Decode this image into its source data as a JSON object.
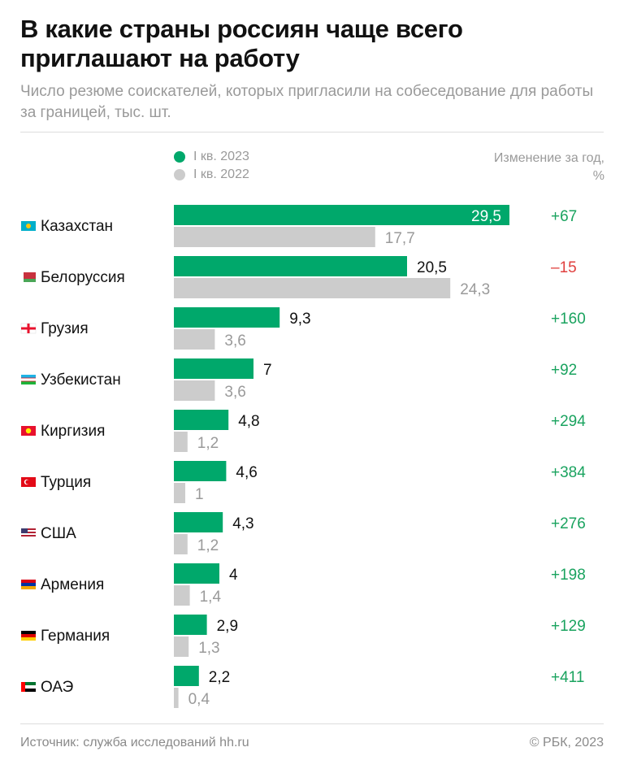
{
  "title": "В какие страны россиян чаще всего приглашают на работу",
  "subtitle": "Число резюме соискателей, которых пригласили на собеседование для работы за границей, тыс. шт.",
  "legend": {
    "current": "I кв. 2023",
    "previous": "I кв. 2022"
  },
  "change_header": "Изменение за год, %",
  "colors": {
    "current": "#00a86b",
    "previous": "#cccccc",
    "positive": "#1aa35f",
    "negative": "#e0403f",
    "label_current": "#111111",
    "label_previous": "#9a9a9a"
  },
  "chart_data": {
    "type": "bar",
    "orientation": "horizontal",
    "title": "В какие страны россиян чаще всего приглашают на работу",
    "categories": [
      "Казахстан",
      "Белоруссия",
      "Грузия",
      "Узбекистан",
      "Киргизия",
      "Турция",
      "США",
      "Армения",
      "Германия",
      "ОАЭ"
    ],
    "series": [
      {
        "name": "I кв. 2023",
        "values": [
          29.5,
          20.5,
          9.3,
          7,
          4.8,
          4.6,
          4.3,
          4,
          2.9,
          2.2
        ],
        "labels": [
          "29,5",
          "20,5",
          "9,3",
          "7",
          "4,8",
          "4,6",
          "4,3",
          "4",
          "2,9",
          "2,2"
        ]
      },
      {
        "name": "I кв. 2022",
        "values": [
          17.7,
          24.3,
          3.6,
          3.6,
          1.2,
          1,
          1.2,
          1.4,
          1.3,
          0.4
        ],
        "labels": [
          "17,7",
          "24,3",
          "3,6",
          "3,6",
          "1,2",
          "1",
          "1,2",
          "1,4",
          "1,3",
          "0,4"
        ]
      }
    ],
    "changes": [
      "+67",
      "–15",
      "+160",
      "+92",
      "+294",
      "+384",
      "+276",
      "+198",
      "+129",
      "+411"
    ],
    "flags": [
      "kz-flag-icon",
      "by-flag-icon",
      "ge-flag-icon",
      "uz-flag-icon",
      "kg-flag-icon",
      "tr-flag-icon",
      "us-flag-icon",
      "am-flag-icon",
      "de-flag-icon",
      "ae-flag-icon"
    ],
    "xlim": [
      0,
      30
    ],
    "unit": "тыс. шт."
  },
  "footer": {
    "source": "Источник: служба исследований hh.ru",
    "copyright": "© РБК, 2023"
  }
}
